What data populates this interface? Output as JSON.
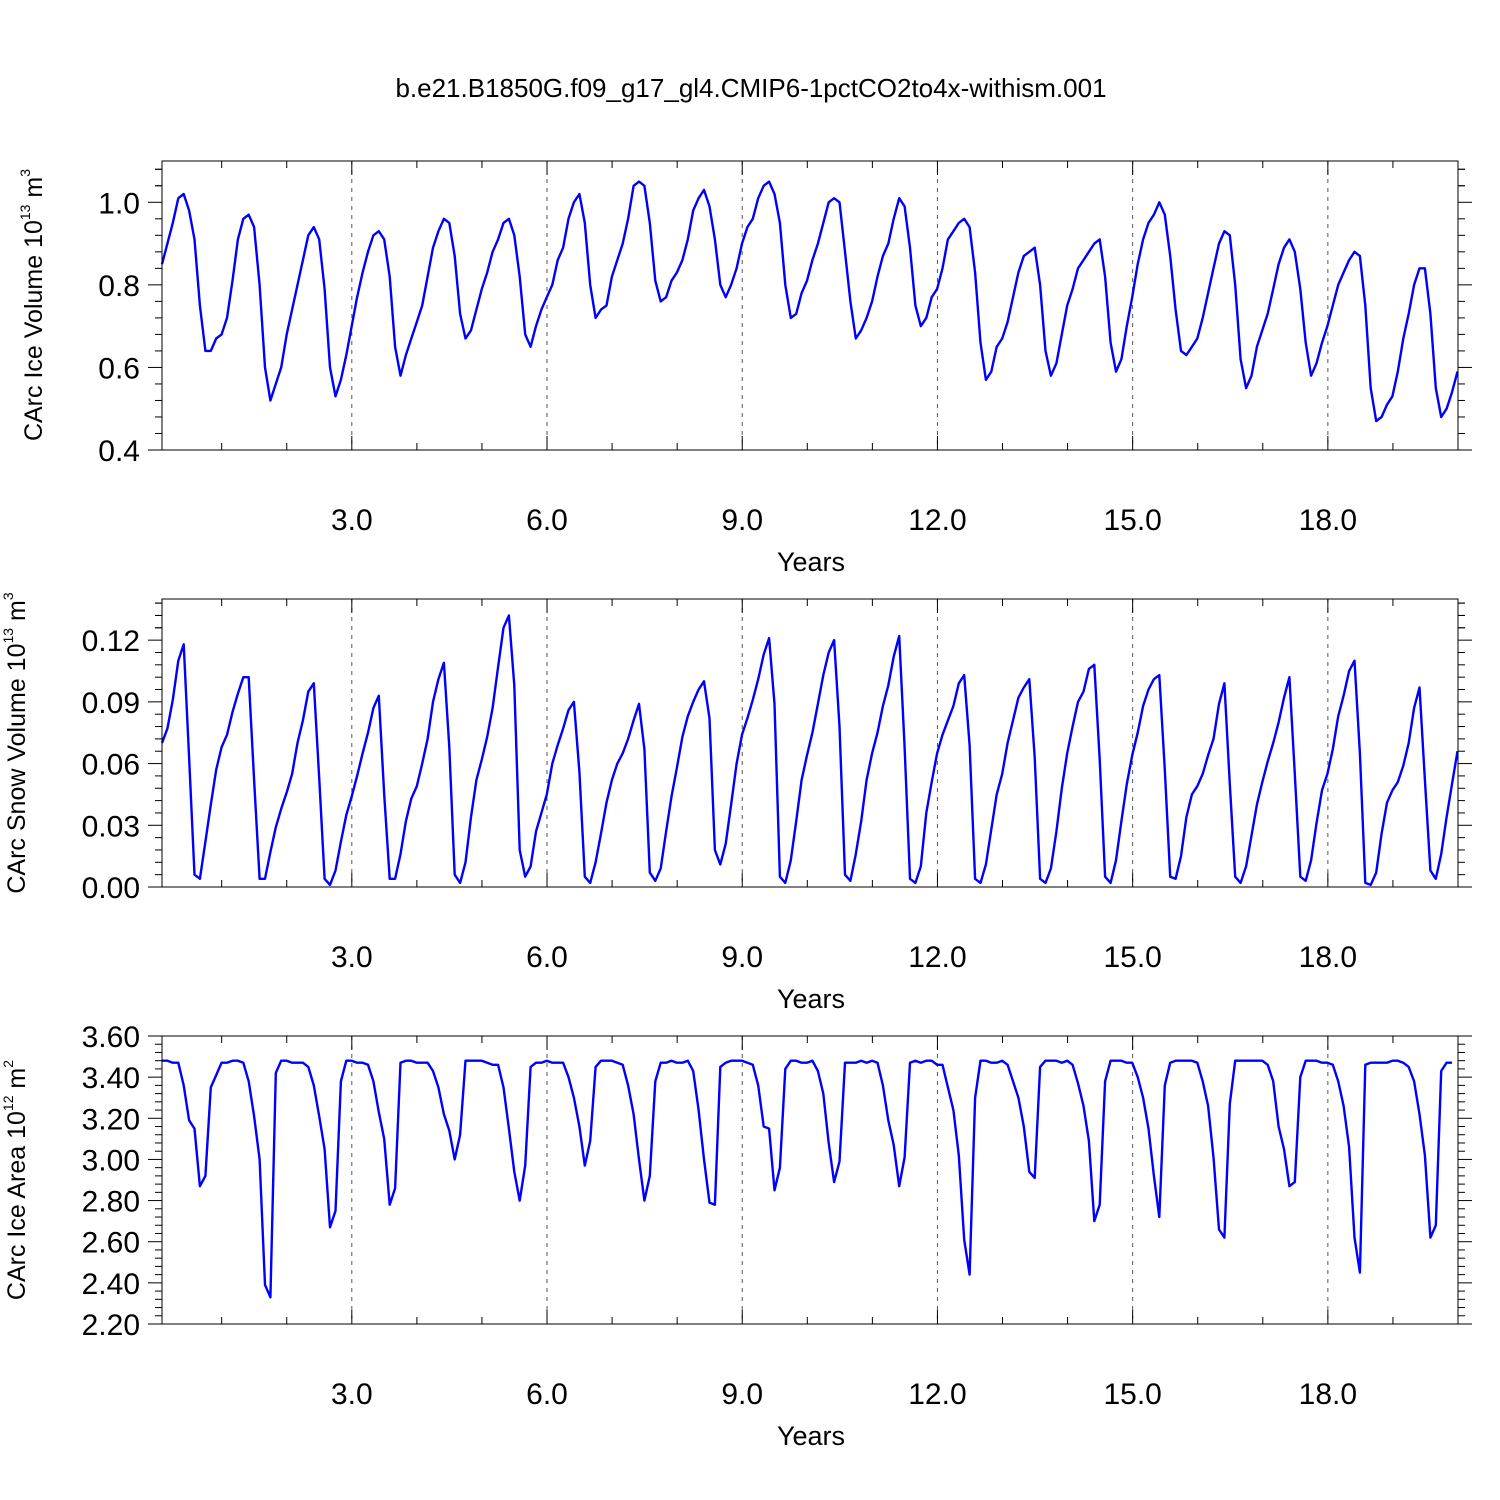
{
  "colors": {
    "series": "#0000ff",
    "axis": "#000000"
  },
  "chart_data": [
    {
      "type": "line",
      "title": "b.e21.B1850G.f09_g17_gl4.CMIP6-1pctCO2to4x-withism.001",
      "xlabel": "Years",
      "ylabel": "CArc Ice Volume 10",
      "ylabel_exp": "13",
      "ylabel_unit": " m",
      "ylabel_unit_exp": "3",
      "xlim": [
        0.083,
        20.0
      ],
      "ylim": [
        0.4,
        1.1
      ],
      "xticks": [
        3,
        6,
        9,
        12,
        15,
        18
      ],
      "xtick_labels": [
        "3.0",
        "6.0",
        "9.0",
        "12.0",
        "15.0",
        "18.0"
      ],
      "yticks": [
        0.4,
        0.6,
        0.8,
        1.0
      ],
      "ytick_labels": [
        "0.4",
        "0.6",
        "0.8",
        "1.0"
      ],
      "grid_x": true,
      "x_start": 0.083,
      "x_step": 0.0833,
      "series": [
        {
          "name": "CArc Ice Volume",
          "values": [
            0.85,
            0.9,
            0.95,
            1.01,
            1.02,
            0.98,
            0.91,
            0.75,
            0.64,
            0.64,
            0.67,
            0.68,
            0.72,
            0.81,
            0.91,
            0.96,
            0.97,
            0.94,
            0.8,
            0.6,
            0.52,
            0.56,
            0.6,
            0.68,
            0.74,
            0.8,
            0.86,
            0.92,
            0.94,
            0.91,
            0.79,
            0.6,
            0.53,
            0.57,
            0.63,
            0.7,
            0.77,
            0.83,
            0.88,
            0.92,
            0.93,
            0.91,
            0.82,
            0.65,
            0.58,
            0.63,
            0.67,
            0.71,
            0.75,
            0.82,
            0.89,
            0.93,
            0.96,
            0.95,
            0.87,
            0.73,
            0.67,
            0.69,
            0.74,
            0.79,
            0.83,
            0.88,
            0.91,
            0.95,
            0.96,
            0.92,
            0.82,
            0.68,
            0.65,
            0.7,
            0.74,
            0.77,
            0.8,
            0.86,
            0.89,
            0.96,
            1.0,
            1.02,
            0.95,
            0.8,
            0.72,
            0.74,
            0.75,
            0.82,
            0.86,
            0.9,
            0.96,
            1.04,
            1.05,
            1.04,
            0.95,
            0.81,
            0.76,
            0.77,
            0.81,
            0.83,
            0.86,
            0.91,
            0.98,
            1.01,
            1.03,
            0.99,
            0.91,
            0.8,
            0.77,
            0.8,
            0.84,
            0.9,
            0.94,
            0.96,
            1.01,
            1.04,
            1.05,
            1.02,
            0.95,
            0.8,
            0.72,
            0.73,
            0.78,
            0.81,
            0.86,
            0.9,
            0.95,
            1.0,
            1.01,
            1.0,
            0.88,
            0.76,
            0.67,
            0.69,
            0.72,
            0.76,
            0.82,
            0.87,
            0.9,
            0.96,
            1.01,
            0.99,
            0.89,
            0.75,
            0.7,
            0.72,
            0.77,
            0.79,
            0.84,
            0.91,
            0.93,
            0.95,
            0.96,
            0.94,
            0.83,
            0.66,
            0.57,
            0.59,
            0.65,
            0.67,
            0.71,
            0.77,
            0.83,
            0.87,
            0.88,
            0.89,
            0.8,
            0.64,
            0.58,
            0.61,
            0.68,
            0.75,
            0.79,
            0.84,
            0.86,
            0.88,
            0.9,
            0.91,
            0.82,
            0.66,
            0.59,
            0.62,
            0.7,
            0.77,
            0.85,
            0.91,
            0.95,
            0.97,
            1.0,
            0.97,
            0.87,
            0.74,
            0.64,
            0.63,
            0.65,
            0.67,
            0.72,
            0.78,
            0.84,
            0.9,
            0.93,
            0.92,
            0.8,
            0.62,
            0.55,
            0.58,
            0.65,
            0.69,
            0.73,
            0.79,
            0.85,
            0.89,
            0.91,
            0.88,
            0.79,
            0.66,
            0.58,
            0.61,
            0.66,
            0.7,
            0.75,
            0.8,
            0.83,
            0.86,
            0.88,
            0.87,
            0.75,
            0.55,
            0.47,
            0.48,
            0.51,
            0.53,
            0.59,
            0.67,
            0.73,
            0.8,
            0.84,
            0.84,
            0.73,
            0.55,
            0.48,
            0.5,
            0.54,
            0.59
          ]
        }
      ]
    },
    {
      "type": "line",
      "title": "",
      "xlabel": "Years",
      "ylabel": "CArc Snow Volume 10",
      "ylabel_exp": "13",
      "ylabel_unit": " m",
      "ylabel_unit_exp": "3",
      "xlim": [
        0.083,
        20.0
      ],
      "ylim": [
        0.0,
        0.14
      ],
      "xticks": [
        3,
        6,
        9,
        12,
        15,
        18
      ],
      "xtick_labels": [
        "3.0",
        "6.0",
        "9.0",
        "12.0",
        "15.0",
        "18.0"
      ],
      "yticks": [
        0.0,
        0.03,
        0.06,
        0.09,
        0.12
      ],
      "ytick_labels": [
        "0.00",
        "0.03",
        "0.06",
        "0.09",
        "0.12"
      ],
      "grid_x": true,
      "x_start": 0.083,
      "x_step": 0.0833,
      "series": [
        {
          "name": "CArc Snow Volume",
          "values": [
            0.07,
            0.077,
            0.091,
            0.11,
            0.118,
            0.063,
            0.006,
            0.004,
            0.022,
            0.04,
            0.057,
            0.068,
            0.074,
            0.085,
            0.094,
            0.102,
            0.102,
            0.052,
            0.004,
            0.004,
            0.017,
            0.029,
            0.038,
            0.046,
            0.055,
            0.07,
            0.081,
            0.095,
            0.099,
            0.053,
            0.004,
            0.001,
            0.008,
            0.022,
            0.035,
            0.044,
            0.054,
            0.065,
            0.075,
            0.087,
            0.093,
            0.045,
            0.004,
            0.004,
            0.016,
            0.032,
            0.043,
            0.049,
            0.06,
            0.072,
            0.09,
            0.101,
            0.109,
            0.068,
            0.006,
            0.002,
            0.012,
            0.034,
            0.052,
            0.062,
            0.073,
            0.087,
            0.107,
            0.126,
            0.132,
            0.098,
            0.018,
            0.005,
            0.01,
            0.027,
            0.036,
            0.045,
            0.06,
            0.069,
            0.077,
            0.086,
            0.09,
            0.056,
            0.005,
            0.002,
            0.012,
            0.026,
            0.041,
            0.052,
            0.06,
            0.065,
            0.072,
            0.081,
            0.089,
            0.067,
            0.007,
            0.003,
            0.009,
            0.027,
            0.044,
            0.058,
            0.073,
            0.083,
            0.09,
            0.096,
            0.1,
            0.082,
            0.018,
            0.011,
            0.021,
            0.04,
            0.06,
            0.074,
            0.082,
            0.091,
            0.101,
            0.113,
            0.121,
            0.089,
            0.005,
            0.002,
            0.013,
            0.032,
            0.052,
            0.064,
            0.075,
            0.089,
            0.103,
            0.114,
            0.12,
            0.078,
            0.006,
            0.003,
            0.016,
            0.032,
            0.052,
            0.065,
            0.075,
            0.088,
            0.098,
            0.112,
            0.122,
            0.068,
            0.004,
            0.002,
            0.01,
            0.036,
            0.051,
            0.065,
            0.074,
            0.081,
            0.088,
            0.099,
            0.103,
            0.069,
            0.004,
            0.002,
            0.011,
            0.028,
            0.045,
            0.055,
            0.07,
            0.081,
            0.092,
            0.097,
            0.101,
            0.063,
            0.004,
            0.002,
            0.009,
            0.027,
            0.048,
            0.065,
            0.078,
            0.09,
            0.095,
            0.106,
            0.108,
            0.062,
            0.005,
            0.002,
            0.013,
            0.032,
            0.05,
            0.064,
            0.075,
            0.088,
            0.096,
            0.101,
            0.103,
            0.057,
            0.005,
            0.004,
            0.015,
            0.034,
            0.045,
            0.049,
            0.055,
            0.064,
            0.072,
            0.089,
            0.099,
            0.05,
            0.005,
            0.002,
            0.01,
            0.025,
            0.04,
            0.051,
            0.061,
            0.07,
            0.08,
            0.092,
            0.102,
            0.055,
            0.005,
            0.003,
            0.013,
            0.031,
            0.047,
            0.055,
            0.067,
            0.083,
            0.093,
            0.105,
            0.11,
            0.065,
            0.002,
            0.001,
            0.007,
            0.026,
            0.041,
            0.047,
            0.051,
            0.059,
            0.07,
            0.087,
            0.097,
            0.052,
            0.008,
            0.004,
            0.016,
            0.034,
            0.05,
            0.066
          ]
        }
      ]
    },
    {
      "type": "line",
      "title": "",
      "xlabel": "Years",
      "ylabel": "CArc Ice Area 10",
      "ylabel_exp": "12",
      "ylabel_unit": " m",
      "ylabel_unit_exp": "2",
      "xlim": [
        0.083,
        20.0
      ],
      "ylim": [
        2.2,
        3.6
      ],
      "xticks": [
        3,
        6,
        9,
        12,
        15,
        18
      ],
      "xtick_labels": [
        "3.0",
        "6.0",
        "9.0",
        "12.0",
        "15.0",
        "18.0"
      ],
      "yticks": [
        2.2,
        2.4,
        2.6,
        2.8,
        3.0,
        3.2,
        3.4,
        3.6
      ],
      "ytick_labels": [
        "2.20",
        "2.40",
        "2.60",
        "2.80",
        "3.00",
        "3.20",
        "3.40",
        "3.60"
      ],
      "grid_x": true,
      "x_start": 0.083,
      "x_step": 0.0833,
      "series": [
        {
          "name": "CArc Ice Area",
          "values": [
            3.48,
            3.48,
            3.47,
            3.47,
            3.36,
            3.19,
            3.15,
            2.87,
            2.92,
            3.35,
            3.41,
            3.47,
            3.47,
            3.48,
            3.48,
            3.47,
            3.38,
            3.21,
            3.0,
            2.39,
            2.33,
            3.42,
            3.48,
            3.48,
            3.47,
            3.47,
            3.47,
            3.45,
            3.36,
            3.21,
            3.05,
            2.67,
            2.75,
            3.38,
            3.48,
            3.48,
            3.47,
            3.47,
            3.46,
            3.38,
            3.23,
            3.1,
            2.78,
            2.86,
            3.47,
            3.48,
            3.48,
            3.47,
            3.47,
            3.47,
            3.43,
            3.35,
            3.22,
            3.14,
            3.0,
            3.12,
            3.48,
            3.48,
            3.48,
            3.48,
            3.47,
            3.46,
            3.46,
            3.35,
            3.15,
            2.94,
            2.8,
            2.97,
            3.45,
            3.47,
            3.47,
            3.48,
            3.47,
            3.47,
            3.47,
            3.4,
            3.3,
            3.16,
            2.97,
            3.09,
            3.45,
            3.48,
            3.48,
            3.48,
            3.47,
            3.46,
            3.36,
            3.22,
            3.0,
            2.8,
            2.92,
            3.38,
            3.47,
            3.47,
            3.48,
            3.47,
            3.47,
            3.48,
            3.43,
            3.24,
            3.0,
            2.79,
            2.78,
            3.45,
            3.47,
            3.48,
            3.48,
            3.48,
            3.47,
            3.46,
            3.36,
            3.16,
            3.15,
            2.85,
            2.96,
            3.44,
            3.48,
            3.48,
            3.47,
            3.47,
            3.48,
            3.43,
            3.32,
            3.08,
            2.89,
            2.99,
            3.47,
            3.47,
            3.47,
            3.48,
            3.47,
            3.48,
            3.47,
            3.36,
            3.19,
            3.07,
            2.87,
            3.01,
            3.47,
            3.48,
            3.47,
            3.48,
            3.48,
            3.46,
            3.46,
            3.35,
            3.24,
            3.02,
            2.61,
            2.44,
            3.3,
            3.48,
            3.48,
            3.47,
            3.47,
            3.48,
            3.46,
            3.38,
            3.3,
            3.16,
            2.94,
            2.91,
            3.45,
            3.48,
            3.48,
            3.48,
            3.47,
            3.48,
            3.46,
            3.37,
            3.26,
            3.09,
            2.7,
            2.78,
            3.38,
            3.48,
            3.48,
            3.48,
            3.47,
            3.47,
            3.4,
            3.3,
            3.15,
            2.92,
            2.72,
            3.36,
            3.47,
            3.48,
            3.48,
            3.48,
            3.48,
            3.47,
            3.38,
            3.26,
            3.01,
            2.66,
            2.62,
            3.27,
            3.48,
            3.48,
            3.48,
            3.48,
            3.48,
            3.48,
            3.46,
            3.38,
            3.16,
            3.05,
            2.87,
            2.89,
            3.4,
            3.48,
            3.48,
            3.48,
            3.47,
            3.47,
            3.46,
            3.38,
            3.26,
            3.06,
            2.62,
            2.45,
            3.46,
            3.47,
            3.47,
            3.47,
            3.47,
            3.48,
            3.48,
            3.47,
            3.45,
            3.38,
            3.22,
            3.02,
            2.62,
            2.68,
            3.43,
            3.47,
            3.47
          ]
        }
      ]
    }
  ]
}
